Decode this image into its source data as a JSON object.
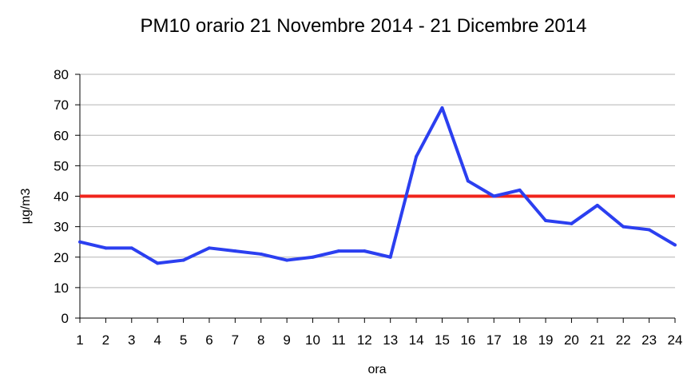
{
  "chart_data": {
    "type": "line",
    "title": "PM10 orario 21 Novembre 2014 - 21 Dicembre 2014",
    "xlabel": "ora",
    "ylabel": "µg/m3",
    "x": [
      1,
      2,
      3,
      4,
      5,
      6,
      7,
      8,
      9,
      10,
      11,
      12,
      13,
      14,
      15,
      16,
      17,
      18,
      19,
      20,
      21,
      22,
      23,
      24
    ],
    "ylim": [
      0,
      80
    ],
    "yticks": [
      0,
      10,
      20,
      30,
      40,
      50,
      60,
      70,
      80
    ],
    "grid": true,
    "series": [
      {
        "values": [
          25,
          23,
          23,
          18,
          19,
          23,
          22,
          21,
          19,
          20,
          22,
          22,
          20,
          53,
          69,
          45,
          40,
          42,
          32,
          31,
          37,
          30,
          29,
          24
        ],
        "color": "#2b3ff0"
      }
    ],
    "reference_line": {
      "value": 40,
      "color": "#f0241c"
    }
  }
}
